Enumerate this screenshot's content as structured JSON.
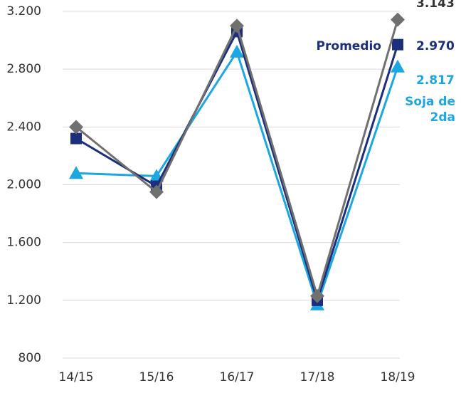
{
  "chart_data": {
    "type": "line",
    "categories": [
      "14/15",
      "15/16",
      "16/17",
      "17/18",
      "18/19"
    ],
    "series": [
      {
        "name": "Promedio",
        "color": "#1b2f7c",
        "marker": "square",
        "values": [
          2320,
          1990,
          3060,
          1200,
          2970
        ],
        "value_labels": [
          null,
          null,
          null,
          null,
          "2.970"
        ]
      },
      {
        "name": "Soja de 2da",
        "color": "#1ca6e2",
        "marker": "triangle",
        "values": [
          2080,
          2060,
          2920,
          1170,
          2817
        ],
        "value_labels": [
          null,
          null,
          null,
          null,
          "2.817"
        ]
      },
      {
        "color": "#707070",
        "marker": "diamond",
        "values": [
          2400,
          1950,
          3100,
          1230,
          3143
        ],
        "value_labels": [
          null,
          null,
          null,
          null,
          "3.143"
        ]
      }
    ],
    "ylim": [
      800,
      3200
    ],
    "yticks": [
      {
        "value": 800,
        "label": "800"
      },
      {
        "value": 1200,
        "label": "1.200"
      },
      {
        "value": 1600,
        "label": "1.600"
      },
      {
        "value": 2000,
        "label": "2.000"
      },
      {
        "value": 2400,
        "label": "2.400"
      },
      {
        "value": 2800,
        "label": "2.800"
      },
      {
        "value": 3200,
        "label": "3.200"
      }
    ],
    "grid": true
  }
}
